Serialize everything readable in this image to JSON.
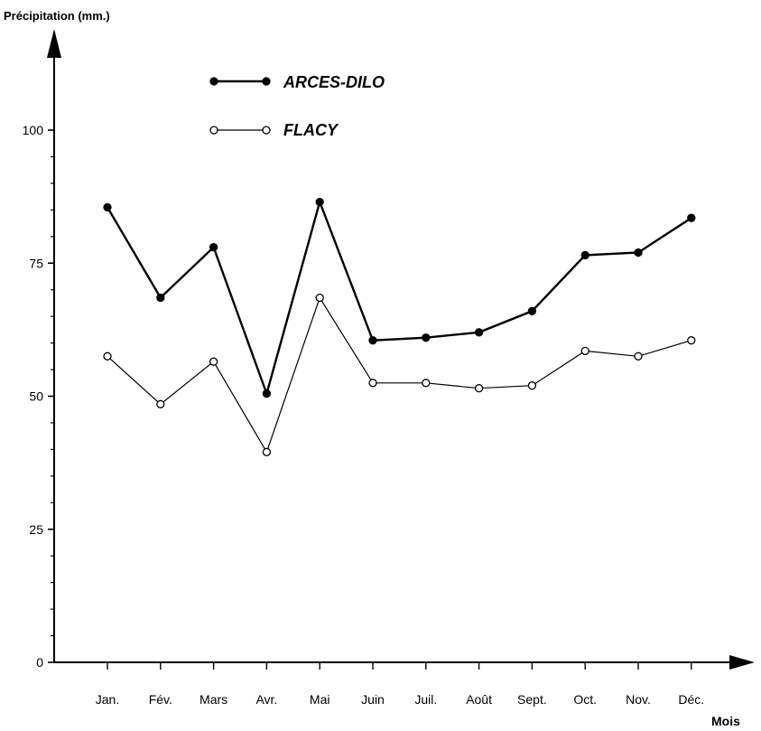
{
  "chart_data": {
    "type": "line",
    "title": "",
    "ylabel": "Précipitation (mm.)",
    "xlabel": "Mois",
    "ylim": [
      0,
      100
    ],
    "yticks": [
      0,
      25,
      50,
      75,
      100
    ],
    "y_minor_step": 5,
    "categories": [
      "Jan.",
      "Fév.",
      "Mars",
      "Avr.",
      "Mai",
      "Juin",
      "Juil.",
      "Août",
      "Sept.",
      "Oct.",
      "Nov.",
      "Déc."
    ],
    "series": [
      {
        "name": "ARCES-DILO",
        "marker": "filled",
        "color": "#000000",
        "values": [
          85.5,
          68.5,
          78,
          50.5,
          86.5,
          60.5,
          61,
          62,
          66,
          76.5,
          77,
          83.5
        ]
      },
      {
        "name": "FLACY",
        "marker": "open",
        "color": "#000000",
        "values": [
          57.5,
          48.5,
          56.5,
          39.5,
          68.5,
          52.5,
          52.5,
          51.5,
          52,
          58.5,
          57.5,
          60.5
        ]
      }
    ],
    "grid": false,
    "legend_position": "top-center"
  }
}
